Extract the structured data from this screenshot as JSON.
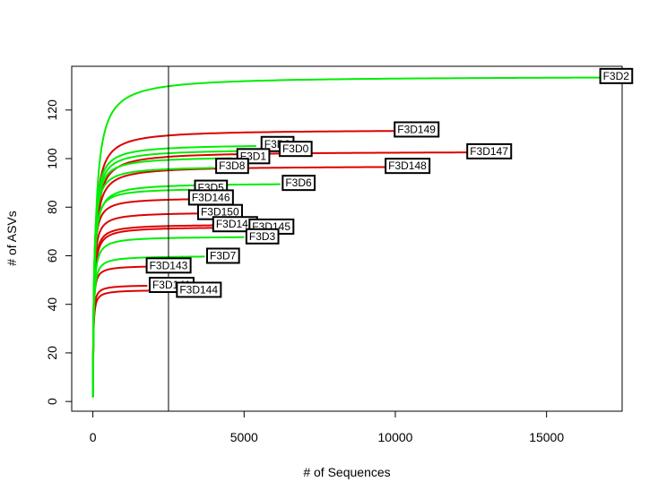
{
  "chart_data": {
    "type": "line",
    "title": "",
    "xlabel": "# of Sequences",
    "ylabel": "# of ASVs",
    "xlim": [
      -700,
      17500
    ],
    "ylim": [
      -4,
      138
    ],
    "x_ticks": [
      0,
      5000,
      10000,
      15000
    ],
    "y_ticks": [
      0,
      20,
      40,
      60,
      80,
      100,
      120
    ],
    "grid": false,
    "vline_x": 2500,
    "colors": {
      "green": "#00ee00",
      "red": "#dd0000",
      "axis": "#000000"
    },
    "series": [
      {
        "name": "F3D2",
        "color": "green",
        "n": 16800,
        "s": 134
      },
      {
        "name": "F3D149",
        "color": "red",
        "n": 10100,
        "s": 112
      },
      {
        "name": "F3D147",
        "color": "red",
        "n": 12400,
        "s": 103
      },
      {
        "name": "F3D148",
        "color": "red",
        "n": 9700,
        "s": 97
      },
      {
        "name": "F3D9",
        "color": "green",
        "n": 5400,
        "s": 106
      },
      {
        "name": "F3D0",
        "color": "green",
        "n": 6000,
        "s": 104
      },
      {
        "name": "F3D1",
        "color": "green",
        "n": 4600,
        "s": 101
      },
      {
        "name": "F3D8",
        "color": "green",
        "n": 4000,
        "s": 97
      },
      {
        "name": "F3D6",
        "color": "green",
        "n": 6200,
        "s": 90
      },
      {
        "name": "F3D5",
        "color": "green",
        "n": 3200,
        "s": 88
      },
      {
        "name": "F3D146",
        "color": "red",
        "n": 3200,
        "s": 84
      },
      {
        "name": "F3D150",
        "color": "red",
        "n": 3500,
        "s": 78
      },
      {
        "name": "F3D142",
        "color": "red",
        "n": 4000,
        "s": 73
      },
      {
        "name": "F3D145",
        "color": "red",
        "n": 5300,
        "s": 72
      },
      {
        "name": "F3D3",
        "color": "green",
        "n": 5000,
        "s": 68
      },
      {
        "name": "F3D7",
        "color": "green",
        "n": 3700,
        "s": 60
      },
      {
        "name": "F3D143",
        "color": "red",
        "n": 1800,
        "s": 56
      },
      {
        "name": "F3D141",
        "color": "red",
        "n": 1800,
        "s": 48
      },
      {
        "name": "F3D144",
        "color": "red",
        "n": 2700,
        "s": 46
      }
    ],
    "labels": [
      {
        "text": "F3D2",
        "x": 17300,
        "y": 134
      },
      {
        "text": "F3D149",
        "x": 10700,
        "y": 112
      },
      {
        "text": "F3D147",
        "x": 13100,
        "y": 103
      },
      {
        "text": "F3D148",
        "x": 10400,
        "y": 97
      },
      {
        "text": "F3D9",
        "x": 6100,
        "y": 106
      },
      {
        "text": "F3D0",
        "x": 6700,
        "y": 104
      },
      {
        "text": "F3D1",
        "x": 5300,
        "y": 101
      },
      {
        "text": "F3D8",
        "x": 4600,
        "y": 97
      },
      {
        "text": "F3D6",
        "x": 6800,
        "y": 90
      },
      {
        "text": "F3D5",
        "x": 3900,
        "y": 88
      },
      {
        "text": "F3D146",
        "x": 3900,
        "y": 84
      },
      {
        "text": "F3D150",
        "x": 4200,
        "y": 78
      },
      {
        "text": "F3D142",
        "x": 4700,
        "y": 73
      },
      {
        "text": "F3D145",
        "x": 5900,
        "y": 72
      },
      {
        "text": "F3D3",
        "x": 5600,
        "y": 68
      },
      {
        "text": "F3D7",
        "x": 4300,
        "y": 60
      },
      {
        "text": "F3D143",
        "x": 2500,
        "y": 56
      },
      {
        "text": "F3D141",
        "x": 2600,
        "y": 48
      },
      {
        "text": "F3D144",
        "x": 3500,
        "y": 46
      }
    ]
  }
}
